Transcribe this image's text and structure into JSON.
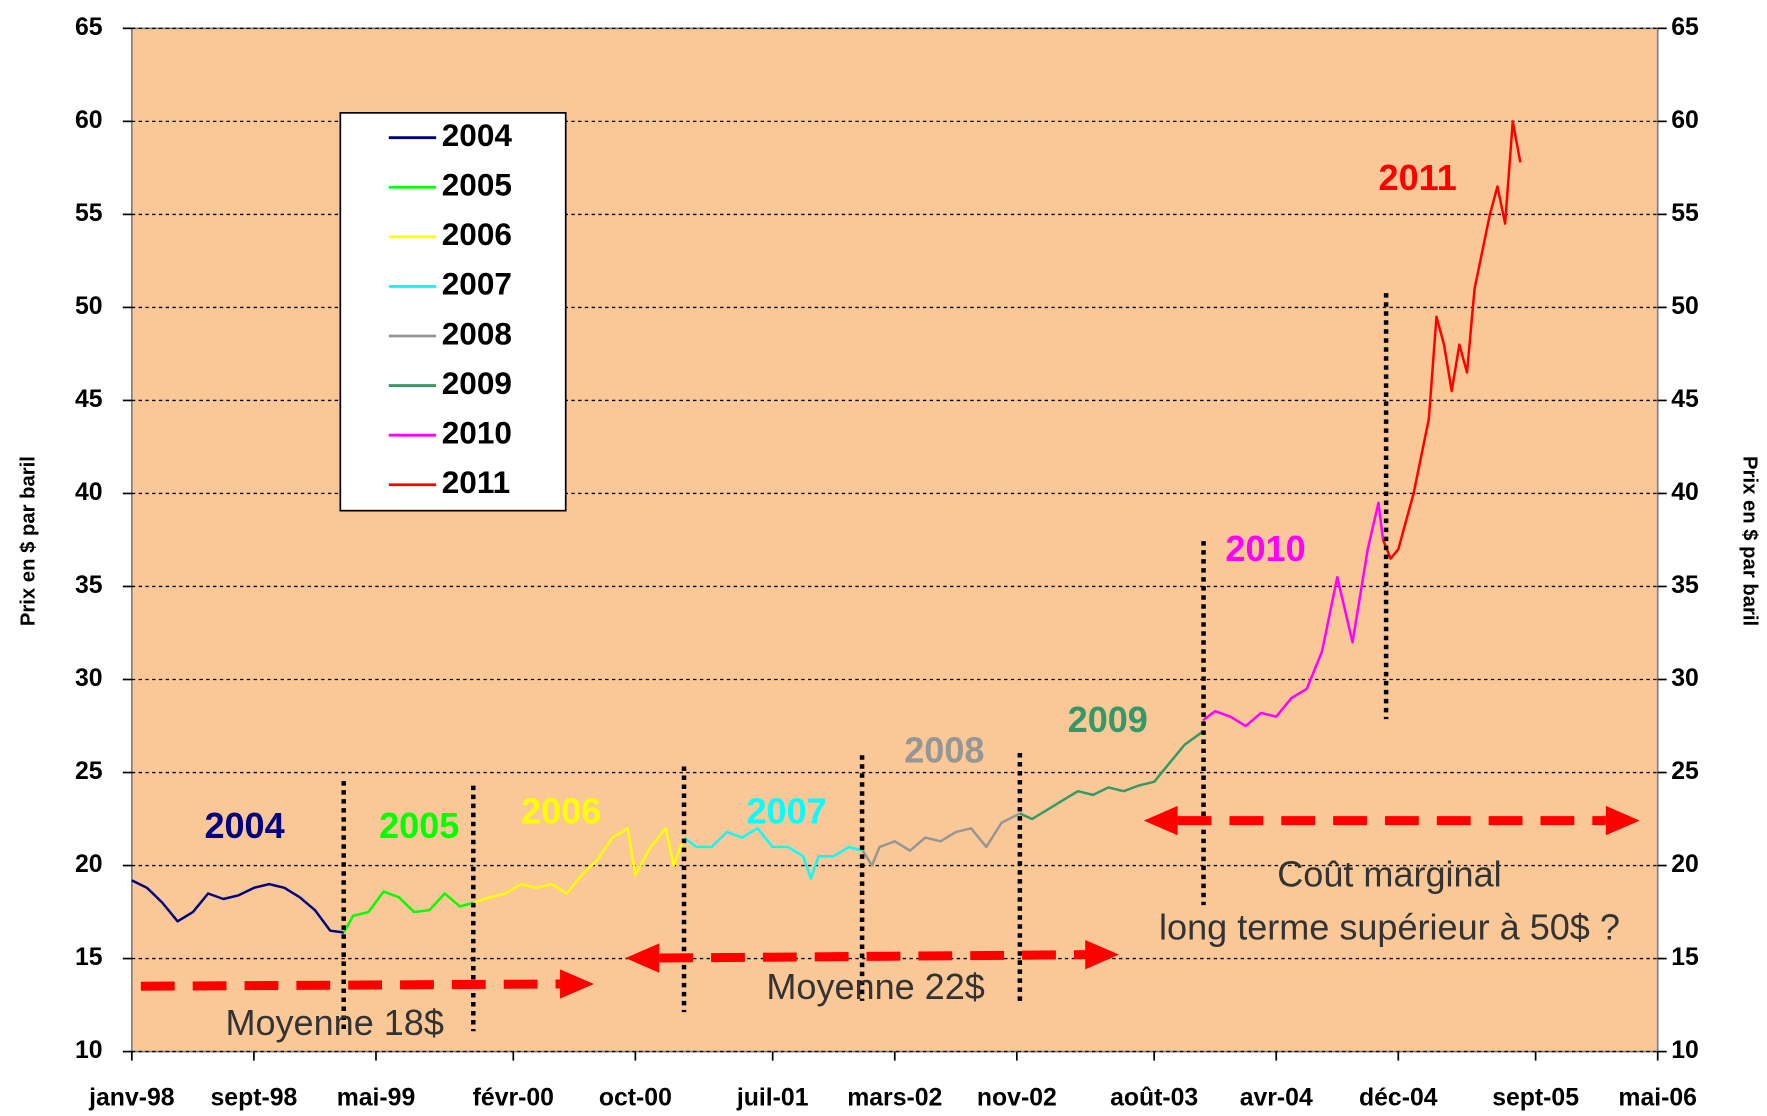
{
  "chart_data": {
    "type": "line",
    "ylabel": "Prix en $ par baril",
    "y2label": "Prix en $ par baril",
    "xlim": [
      0,
      100
    ],
    "xticks": [
      {
        "value": 0,
        "label": "janv-98"
      },
      {
        "value": 8,
        "label": "sept-98"
      },
      {
        "value": 16,
        "label": "mai-99"
      },
      {
        "value": 25,
        "label": "févr-00"
      },
      {
        "value": 33,
        "label": "oct-00"
      },
      {
        "value": 42,
        "label": "juil-01"
      },
      {
        "value": 50,
        "label": "mars-02"
      },
      {
        "value": 58,
        "label": "nov-02"
      },
      {
        "value": 67,
        "label": "août-03"
      },
      {
        "value": 75,
        "label": "avr-04"
      },
      {
        "value": 83,
        "label": "déc-04"
      },
      {
        "value": 92,
        "label": "sept-05"
      },
      {
        "value": 100,
        "label": "mai-06"
      }
    ],
    "ylim": [
      10,
      65
    ],
    "yticks": [
      10,
      15,
      20,
      25,
      30,
      35,
      40,
      45,
      50,
      55,
      60,
      65
    ],
    "y2lim": [
      10,
      65
    ],
    "y2ticks": [
      10,
      15,
      20,
      25,
      30,
      35,
      40,
      45,
      50,
      55,
      60,
      65
    ],
    "grid": true,
    "legend": "upper left",
    "series": [
      {
        "name": "2004",
        "color": "#000080",
        "x": [
          0,
          1,
          2,
          3,
          4,
          5,
          6,
          7,
          8,
          9,
          10,
          11,
          12,
          13,
          13.9
        ],
        "values": [
          19.2,
          18.8,
          18.0,
          17.0,
          17.5,
          18.5,
          18.2,
          18.4,
          18.8,
          19.0,
          18.8,
          18.3,
          17.6,
          16.5,
          16.4
        ]
      },
      {
        "name": "2005",
        "color": "#00FF00",
        "x": [
          13.9,
          14.5,
          15.5,
          16.5,
          17.5,
          18.5,
          19.5,
          20.5,
          21.5,
          22.4
        ],
        "values": [
          16.4,
          17.3,
          17.5,
          18.6,
          18.3,
          17.5,
          17.6,
          18.5,
          17.8,
          18.0
        ]
      },
      {
        "name": "2006",
        "color": "#FFFF00",
        "x": [
          22.4,
          23.5,
          24.5,
          25.5,
          26.5,
          27.5,
          28.5,
          29.5,
          30.5,
          31.5,
          32.5,
          33,
          34,
          35,
          35.5,
          36.2
        ],
        "values": [
          18.0,
          18.3,
          18.5,
          19.0,
          18.8,
          19.0,
          18.5,
          19.5,
          20.3,
          21.5,
          22.0,
          19.5,
          21.0,
          22.0,
          20.0,
          21.5
        ]
      },
      {
        "name": "2007",
        "color": "#00FFFF",
        "x": [
          36.2,
          37,
          38,
          39,
          40,
          41,
          42,
          43,
          44,
          44.5,
          45,
          46,
          47,
          47.9
        ],
        "values": [
          21.5,
          21.0,
          21.0,
          21.8,
          21.5,
          22.0,
          21.0,
          21.0,
          20.5,
          19.3,
          20.5,
          20.5,
          21.0,
          20.8
        ]
      },
      {
        "name": "2008",
        "color": "#969696",
        "x": [
          47.9,
          48.5,
          49,
          50,
          51,
          52,
          53,
          54,
          55,
          56,
          57,
          58.2
        ],
        "values": [
          20.8,
          20.0,
          21.0,
          21.3,
          20.8,
          21.5,
          21.3,
          21.8,
          22.0,
          21.0,
          22.3,
          22.8
        ]
      },
      {
        "name": "2009",
        "color": "#339966",
        "x": [
          58.2,
          59,
          60,
          61,
          62,
          63,
          64,
          65,
          66,
          67,
          68,
          69,
          70.2
        ],
        "values": [
          22.8,
          22.5,
          23.0,
          23.5,
          24.0,
          23.8,
          24.2,
          24.0,
          24.3,
          24.5,
          25.5,
          26.5,
          27.2
        ]
      },
      {
        "name": "2010",
        "color": "#FF00FF",
        "x": [
          70.2,
          71,
          72,
          73,
          74,
          75,
          76,
          77,
          78,
          79,
          80,
          81,
          81.7,
          82
        ],
        "values": [
          27.8,
          28.3,
          28.0,
          27.5,
          28.2,
          28.0,
          29.0,
          29.5,
          31.5,
          35.5,
          32.0,
          37.0,
          39.5,
          37.5
        ]
      },
      {
        "name": "2011",
        "color": "#FF0000",
        "x": [
          82,
          82.5,
          83,
          83.5,
          84,
          85,
          85.5,
          86,
          86.5,
          87,
          87.5,
          88,
          89,
          89.5,
          90,
          90.5,
          91
        ],
        "values": [
          37.5,
          36.5,
          37.0,
          38.5,
          40.0,
          44.0,
          49.5,
          48.0,
          45.5,
          48.0,
          46.5,
          51.0,
          55.0,
          56.5,
          54.5,
          60.0,
          57.8
        ]
      }
    ],
    "annotations": [
      "Moyenne 18$",
      "Moyenne 22$",
      "Coût marginal",
      "long terme supérieur à 50$ ?"
    ]
  }
}
